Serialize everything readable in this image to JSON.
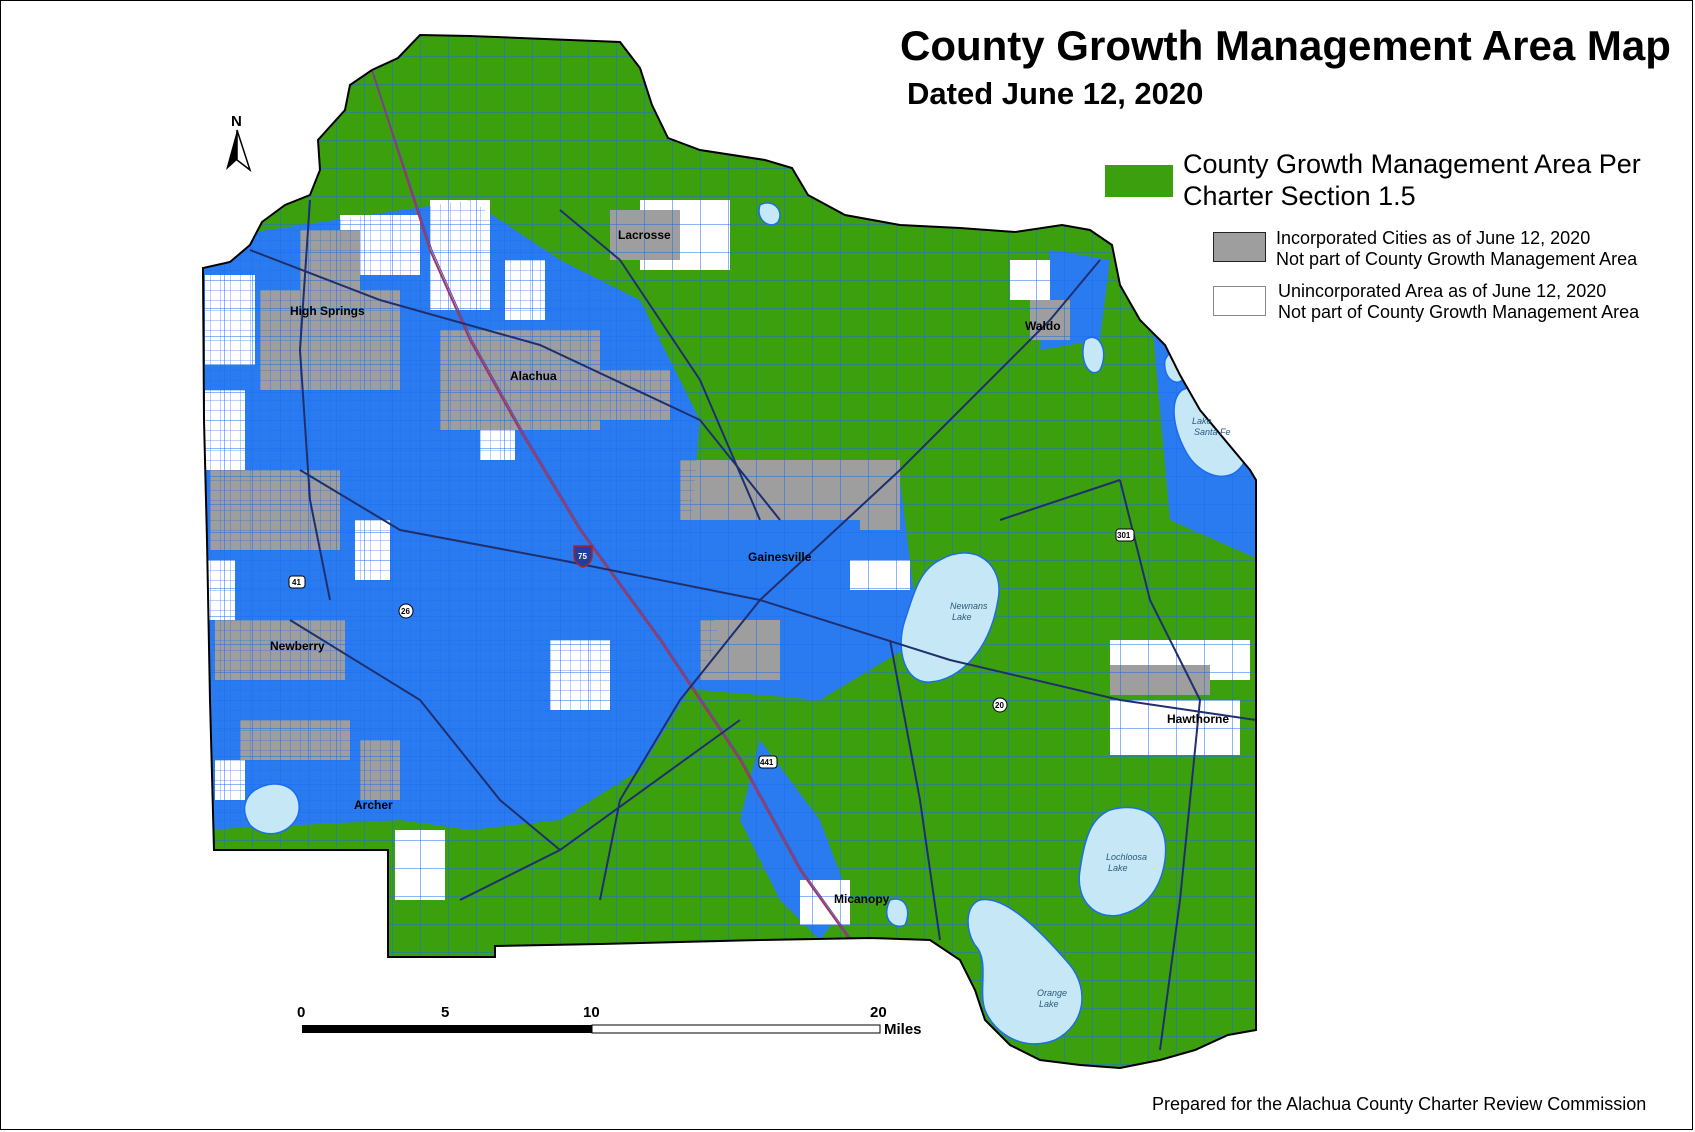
{
  "title": "County Growth Management Area Map",
  "subtitle": "Dated June 12, 2020",
  "north_label": "N",
  "legend": {
    "green_line1": "County Growth Management Area Per",
    "green_line2": "Charter Section 1.5",
    "gray_line1": "Incorporated Cities as of June 12, 2020",
    "gray_line2": "Not part of County Growth Management Area",
    "white_line1": "Unincorporated Area as of June 12, 2020",
    "white_line2": "Not part of County Growth Management Area"
  },
  "colors": {
    "growth_area": "#3ca00e",
    "incorporated": "#9e9e9e",
    "unincorporated": "#ffffff",
    "parcel_lines": "#1a6cf0",
    "roads": "#1f2f6e",
    "lakes": "#c6e8f6"
  },
  "cities": {
    "lacrosse": "Lacrosse",
    "high_springs": "High Springs",
    "alachua": "Alachua",
    "waldo": "Waldo",
    "gainesville": "Gainesville",
    "newberry": "Newberry",
    "archer": "Archer",
    "micanopy": "Micanopy",
    "hawthorne": "Hawthorne"
  },
  "lakes": {
    "santa_fe_1": "Lake",
    "santa_fe_2": "Santa Fe",
    "newnans_1": "Newnans",
    "newnans_2": "Lake",
    "lochloosa_1": "Lochloosa",
    "lochloosa_2": "Lake",
    "orange_1": "Orange",
    "orange_2": "Lake"
  },
  "highways": {
    "i75": "75",
    "us41": "41",
    "sr26": "26",
    "us441": "441",
    "sr20": "20",
    "us301": "301"
  },
  "scale_bar": {
    "t0": "0",
    "t5": "5",
    "t10": "10",
    "t20": "20",
    "unit": "Miles"
  },
  "footer": "Prepared for the Alachua County Charter Review Commission"
}
